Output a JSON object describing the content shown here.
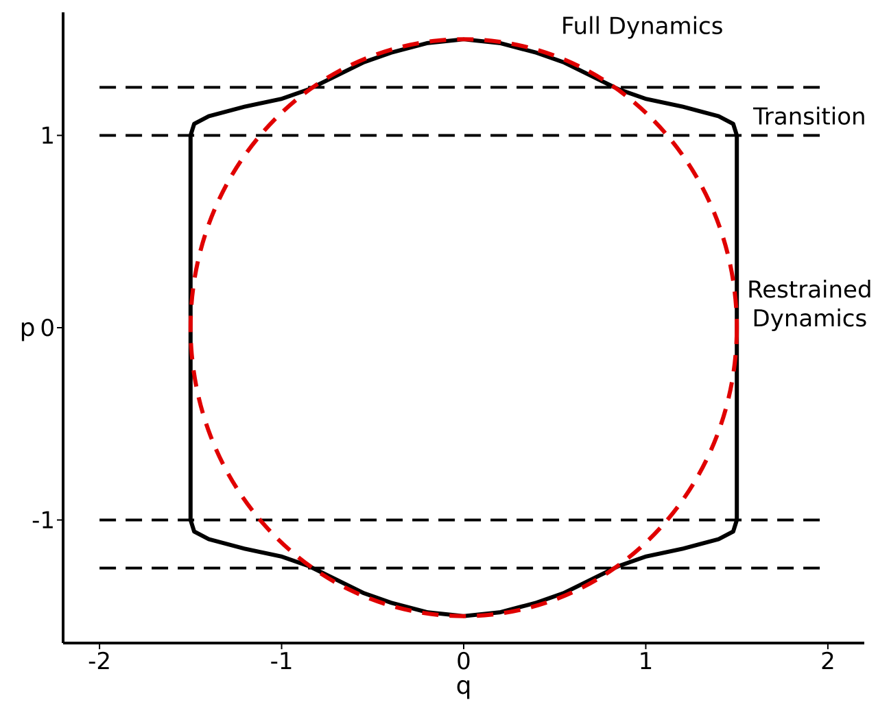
{
  "chart_data": {
    "type": "line",
    "xlabel": "q",
    "ylabel": "p",
    "xlim": [
      -2.2,
      2.2
    ],
    "ylim": [
      -1.64,
      1.64
    ],
    "x_ticks": [
      {
        "value": -2,
        "label": "-2"
      },
      {
        "value": -1,
        "label": "-1"
      },
      {
        "value": 0,
        "label": "0"
      },
      {
        "value": 1,
        "label": "1"
      },
      {
        "value": 2,
        "label": "2"
      }
    ],
    "y_ticks": [
      {
        "value": -1,
        "label": "-1"
      },
      {
        "value": 0,
        "label": "0"
      },
      {
        "value": 1,
        "label": "1"
      }
    ],
    "grid": false,
    "series": [
      {
        "style": "solid",
        "color": "#000000",
        "upper_points": [
          [
            -1.5,
            1.0
          ],
          [
            -1.48,
            1.06
          ],
          [
            -1.4,
            1.1
          ],
          [
            -1.2,
            1.15
          ],
          [
            -1.0,
            1.19
          ],
          [
            -0.85,
            1.24
          ],
          [
            -0.7,
            1.31
          ],
          [
            -0.55,
            1.38
          ],
          [
            -0.4,
            1.43
          ],
          [
            -0.2,
            1.48
          ],
          [
            0.0,
            1.5
          ],
          [
            0.2,
            1.48
          ],
          [
            0.4,
            1.43
          ],
          [
            0.55,
            1.38
          ],
          [
            0.7,
            1.31
          ],
          [
            0.85,
            1.24
          ],
          [
            1.0,
            1.19
          ],
          [
            1.2,
            1.15
          ],
          [
            1.4,
            1.1
          ],
          [
            1.48,
            1.06
          ],
          [
            1.5,
            1.0
          ]
        ]
      },
      {
        "style": "dashed",
        "color": "#e00000",
        "shape": "ellipse",
        "center": [
          0,
          0
        ],
        "radius_q": 1.5,
        "radius_p": 1.5
      },
      {
        "style": "dashed",
        "color": "#000000",
        "orientation": "horizontal",
        "y_values": [
          1.25,
          1.0,
          -1.0,
          -1.25
        ],
        "x_range": [
          -2.0,
          2.0
        ]
      }
    ],
    "annotations": [
      {
        "text": "Full Dynamics",
        "q": 0.98,
        "p": 1.57
      },
      {
        "text": "Transition",
        "q": 1.9,
        "p": 1.1
      },
      {
        "text": "Restrained",
        "q": 1.9,
        "p": 0.2
      },
      {
        "text": "Dynamics",
        "q": 1.9,
        "p": 0.05
      }
    ]
  }
}
